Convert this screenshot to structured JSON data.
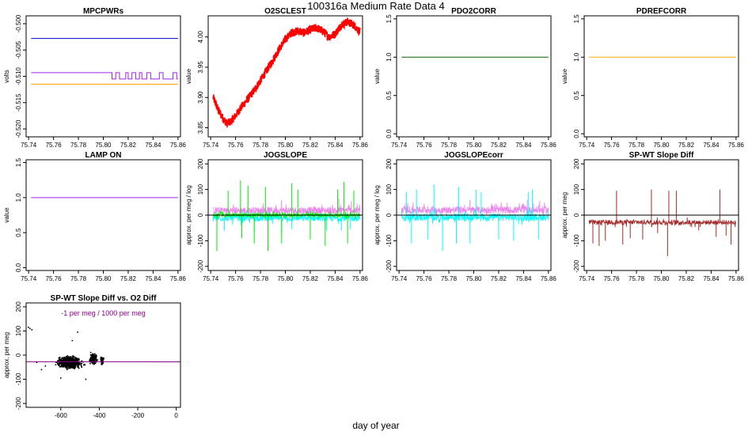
{
  "figure": {
    "title": "100316a   Medium Rate Data 4",
    "xlabel": "day of year"
  },
  "chart_data": [
    {
      "id": "mpcpwrs",
      "type": "line",
      "title": "MPCPWRs",
      "ylabel": "volts",
      "xlim": [
        75.738,
        75.862
      ],
      "ylim": [
        -0.5215,
        -0.4985
      ],
      "xticks": [
        75.74,
        75.76,
        75.78,
        75.8,
        75.82,
        75.84,
        75.86
      ],
      "xticklabels": [
        "75.74",
        "75.76",
        "75.78",
        "75.80",
        "75.82",
        "75.84",
        "75.86"
      ],
      "yticks": [
        -0.52,
        -0.515,
        -0.51,
        -0.505,
        -0.5
      ],
      "yticklabels": [
        "-0.520",
        "-0.515",
        "-0.510",
        "-0.505",
        "-0.500"
      ],
      "series": [
        {
          "color": "#0000cd",
          "x": [
            75.742,
            75.86
          ],
          "y": [
            -0.5028,
            -0.5028
          ]
        },
        {
          "color": "#ffa500",
          "x": [
            75.742,
            75.86
          ],
          "y": [
            -0.5115,
            -0.5115
          ]
        },
        {
          "color": "#a020f0",
          "x": [
            75.742,
            75.807,
            75.807,
            75.81,
            75.81,
            75.813,
            75.813,
            75.818,
            75.818,
            75.82,
            75.82,
            75.823,
            75.823,
            75.826,
            75.826,
            75.829,
            75.829,
            75.831,
            75.831,
            75.835,
            75.835,
            75.838,
            75.838,
            75.845,
            75.845,
            75.848,
            75.848,
            75.856,
            75.856,
            75.859,
            75.859,
            75.86
          ],
          "y": [
            -0.5093,
            -0.5093,
            -0.5105,
            -0.5105,
            -0.5093,
            -0.5093,
            -0.5105,
            -0.5105,
            -0.5093,
            -0.5093,
            -0.5105,
            -0.5105,
            -0.5093,
            -0.5093,
            -0.5105,
            -0.5105,
            -0.5093,
            -0.5093,
            -0.5105,
            -0.5105,
            -0.5093,
            -0.5093,
            -0.5105,
            -0.5105,
            -0.5093,
            -0.5093,
            -0.5105,
            -0.5105,
            -0.5093,
            -0.5093,
            -0.5105,
            -0.5105
          ]
        }
      ]
    },
    {
      "id": "o2sclest",
      "type": "line",
      "title": "O2SCLEST",
      "ylabel": "value",
      "xlim": [
        75.738,
        75.862
      ],
      "ylim": [
        3.835,
        4.035
      ],
      "xticks": [
        75.74,
        75.76,
        75.78,
        75.8,
        75.82,
        75.84,
        75.86
      ],
      "xticklabels": [
        "75.74",
        "75.76",
        "75.78",
        "75.80",
        "75.82",
        "75.84",
        "75.86"
      ],
      "yticks": [
        3.85,
        3.9,
        3.95,
        4.0
      ],
      "yticklabels": [
        "3.85",
        "3.90",
        "3.95",
        "4.00"
      ],
      "series": [
        {
          "color": "#ff0000",
          "noise": 0.007,
          "x": [
            75.742,
            75.746,
            75.75,
            75.753,
            75.756,
            75.76,
            75.765,
            75.77,
            75.775,
            75.78,
            75.785,
            75.79,
            75.795,
            75.8,
            75.805,
            75.81,
            75.815,
            75.82,
            75.825,
            75.83,
            75.835,
            75.84,
            75.845,
            75.85,
            75.855,
            75.86
          ],
          "y": [
            3.9,
            3.88,
            3.865,
            3.857,
            3.86,
            3.87,
            3.885,
            3.898,
            3.912,
            3.928,
            3.945,
            3.962,
            3.98,
            3.996,
            4.007,
            4.01,
            4.007,
            4.012,
            4.015,
            4.01,
            4.0,
            4.005,
            4.02,
            4.025,
            4.02,
            4.008
          ]
        }
      ]
    },
    {
      "id": "pdo2corr",
      "type": "line",
      "title": "PDO2CORR",
      "ylabel": "value",
      "xlim": [
        75.738,
        75.862
      ],
      "ylim": [
        -0.04,
        1.54
      ],
      "xticks": [
        75.74,
        75.76,
        75.78,
        75.8,
        75.82,
        75.84,
        75.86
      ],
      "xticklabels": [
        "75.74",
        "75.76",
        "75.78",
        "75.80",
        "75.82",
        "75.84",
        "75.86"
      ],
      "yticks": [
        0.0,
        0.5,
        1.0,
        1.5
      ],
      "yticklabels": [
        "0.0",
        "0.5",
        "1.0",
        "1.5"
      ],
      "series": [
        {
          "color": "#006400",
          "x": [
            75.742,
            75.86
          ],
          "y": [
            1.0,
            1.0
          ]
        }
      ]
    },
    {
      "id": "pdrefcorr",
      "type": "line",
      "title": "PDREFCORR",
      "ylabel": "value",
      "xlim": [
        75.738,
        75.862
      ],
      "ylim": [
        -0.04,
        1.54
      ],
      "xticks": [
        75.74,
        75.76,
        75.78,
        75.8,
        75.82,
        75.84,
        75.86
      ],
      "xticklabels": [
        "75.74",
        "75.76",
        "75.78",
        "75.80",
        "75.82",
        "75.84",
        "75.86"
      ],
      "yticks": [
        0.0,
        0.5,
        1.0,
        1.5
      ],
      "yticklabels": [
        "0.0",
        "0.5",
        "1.0",
        "1.5"
      ],
      "series": [
        {
          "color": "#ffa500",
          "x": [
            75.742,
            75.86
          ],
          "y": [
            1.0,
            1.0
          ]
        }
      ]
    },
    {
      "id": "lampon",
      "type": "line",
      "title": "LAMP ON",
      "ylabel": "value",
      "xlim": [
        75.738,
        75.862
      ],
      "ylim": [
        -0.04,
        1.54
      ],
      "xticks": [
        75.74,
        75.76,
        75.78,
        75.8,
        75.82,
        75.84,
        75.86
      ],
      "xticklabels": [
        "75.74",
        "75.76",
        "75.78",
        "75.80",
        "75.82",
        "75.84",
        "75.86"
      ],
      "yticks": [
        0.0,
        0.5,
        1.0,
        1.5
      ],
      "yticklabels": [
        "0.0",
        "0.5",
        "1.0",
        "1.5"
      ],
      "series": [
        {
          "color": "#a020f0",
          "x": [
            75.742,
            75.86
          ],
          "y": [
            1.0,
            1.0
          ]
        }
      ]
    },
    {
      "id": "jogslope",
      "type": "line",
      "title": "JOGSLOPE",
      "ylabel": "approx. per meg / log",
      "xlim": [
        75.738,
        75.862
      ],
      "ylim": [
        -216,
        216
      ],
      "xticks": [
        75.74,
        75.76,
        75.78,
        75.8,
        75.82,
        75.84,
        75.86
      ],
      "xticklabels": [
        "75.74",
        "75.76",
        "75.78",
        "75.80",
        "75.82",
        "75.84",
        "75.86"
      ],
      "yticks": [
        -200,
        -100,
        0,
        100,
        200
      ],
      "yticklabels": [
        "-200",
        "-100",
        "0",
        "100",
        "200"
      ],
      "hline": 0,
      "series": [
        {
          "color": "#ee82ee",
          "x0": 75.742,
          "x1": 75.86,
          "base": 18,
          "noise": 14,
          "spikes": [
            [
              75.797,
              60
            ],
            [
              75.843,
              65
            ],
            [
              75.853,
              55
            ]
          ]
        },
        {
          "color": "#00ffff",
          "x0": 75.742,
          "x1": 75.86,
          "base": -12,
          "noise": 12,
          "spikes": [
            [
              75.751,
              -60
            ],
            [
              75.775,
              -65
            ],
            [
              75.797,
              -70
            ],
            [
              75.805,
              -55
            ],
            [
              75.833,
              -60
            ],
            [
              75.845,
              -60
            ],
            [
              75.852,
              -55
            ]
          ]
        },
        {
          "color": "#00ee00",
          "x0": 75.742,
          "x1": 75.86,
          "base": 0,
          "noise": 8,
          "spikes": [
            [
              75.745,
              -140
            ],
            [
              75.754,
              95
            ],
            [
              75.764,
              135
            ],
            [
              75.765,
              -90
            ],
            [
              75.77,
              115
            ],
            [
              75.775,
              -110
            ],
            [
              75.784,
              110
            ],
            [
              75.786,
              -140
            ],
            [
              75.797,
              -110
            ],
            [
              75.805,
              125
            ],
            [
              75.81,
              100
            ],
            [
              75.82,
              -95
            ],
            [
              75.832,
              -120
            ],
            [
              75.842,
              100
            ],
            [
              75.847,
              130
            ],
            [
              75.85,
              -110
            ],
            [
              75.855,
              95
            ]
          ]
        }
      ]
    },
    {
      "id": "jogslopecorr",
      "type": "line",
      "title": "JOGSLOPEcorr",
      "ylabel": "approx. per meg / log",
      "xlim": [
        75.738,
        75.862
      ],
      "ylim": [
        -216,
        216
      ],
      "xticks": [
        75.74,
        75.76,
        75.78,
        75.8,
        75.82,
        75.84,
        75.86
      ],
      "xticklabels": [
        "75.74",
        "75.76",
        "75.78",
        "75.80",
        "75.82",
        "75.84",
        "75.86"
      ],
      "yticks": [
        -200,
        -100,
        0,
        100,
        200
      ],
      "yticklabels": [
        "-200",
        "-100",
        "0",
        "100",
        "200"
      ],
      "hline": 0,
      "series": [
        {
          "color": "#ee82ee",
          "x0": 75.742,
          "x1": 75.86,
          "base": 20,
          "noise": 14,
          "spikes": [
            [
              75.797,
              60
            ],
            [
              75.843,
              60
            ],
            [
              75.853,
              55
            ]
          ]
        },
        {
          "color": "#00ffff",
          "x0": 75.742,
          "x1": 75.86,
          "base": -8,
          "noise": 14,
          "spikes": [
            [
              75.746,
              90
            ],
            [
              75.75,
              -110
            ],
            [
              75.754,
              100
            ],
            [
              75.763,
              -95
            ],
            [
              75.768,
              120
            ],
            [
              75.775,
              -140
            ],
            [
              75.786,
              -110
            ],
            [
              75.788,
              110
            ],
            [
              75.797,
              -110
            ],
            [
              75.802,
              100
            ],
            [
              75.806,
              90
            ],
            [
              75.82,
              -95
            ],
            [
              75.832,
              -100
            ],
            [
              75.844,
              90
            ],
            [
              75.847,
              100
            ],
            [
              75.852,
              -95
            ]
          ]
        }
      ]
    },
    {
      "id": "spwt",
      "type": "line",
      "title": "SP-WT Slope Diff",
      "ylabel": "approx. per meg",
      "xlim": [
        75.738,
        75.862
      ],
      "ylim": [
        -216,
        216
      ],
      "xticks": [
        75.74,
        75.76,
        75.78,
        75.8,
        75.82,
        75.84,
        75.86
      ],
      "xticklabels": [
        "75.74",
        "75.76",
        "75.78",
        "75.80",
        "75.82",
        "75.84",
        "75.86"
      ],
      "yticks": [
        -200,
        -100,
        0,
        100,
        200
      ],
      "yticklabels": [
        "-200",
        "-100",
        "0",
        "100",
        "200"
      ],
      "hline": 0,
      "series": [
        {
          "color": "#a52a2a",
          "x0": 75.742,
          "x1": 75.86,
          "base": -28,
          "noise": 9,
          "spikes": [
            [
              75.745,
              -110
            ],
            [
              75.75,
              -120
            ],
            [
              75.755,
              -100
            ],
            [
              75.764,
              95
            ],
            [
              75.769,
              -115
            ],
            [
              75.775,
              -90
            ],
            [
              75.785,
              -95
            ],
            [
              75.792,
              100
            ],
            [
              75.797,
              -70
            ],
            [
              75.805,
              -160
            ],
            [
              75.806,
              95
            ],
            [
              75.812,
              95
            ],
            [
              75.83,
              -60
            ],
            [
              75.844,
              -85
            ],
            [
              75.847,
              100
            ],
            [
              75.852,
              -80
            ],
            [
              75.856,
              -115
            ]
          ]
        }
      ]
    },
    {
      "id": "spwtvso2",
      "type": "scatter",
      "title": "SP-WT Slope Diff vs. O2 Diff",
      "ylabel": "approx. per meg",
      "xlim": [
        -780,
        22
      ],
      "ylim": [
        -216,
        216
      ],
      "xticks": [
        -600,
        -400,
        -200,
        0
      ],
      "xticklabels": [
        "-600",
        "-400",
        "-200",
        "0"
      ],
      "yticks": [
        -200,
        -100,
        0,
        100,
        200
      ],
      "yticklabels": [
        "-200",
        "-100",
        "0",
        "100",
        "200"
      ],
      "annotation": "-1 per meg / 1000 per meg",
      "annotation_color": "#8b008b",
      "fit": {
        "color": "#8b008b",
        "intercept": -28,
        "slope": -0.001
      },
      "series": [
        {
          "color": "#000000",
          "clusters": [
            {
              "x": -555,
              "sx": 50,
              "y": -30,
              "sy": 18,
              "n": 700
            },
            {
              "x": -432,
              "sx": 15,
              "y": -15,
              "sy": 16,
              "n": 160
            },
            {
              "x": -385,
              "sx": 6,
              "y": -20,
              "sy": 14,
              "n": 60
            }
          ],
          "extra": [
            [
              -760,
              110
            ],
            [
              -750,
              105
            ],
            [
              -768,
              115
            ],
            [
              -680,
              -45
            ],
            [
              -700,
              -60
            ],
            [
              -725,
              -30
            ],
            [
              -512,
              95
            ],
            [
              -540,
              60
            ],
            [
              -600,
              -95
            ],
            [
              -470,
              -100
            ]
          ]
        }
      ]
    }
  ]
}
